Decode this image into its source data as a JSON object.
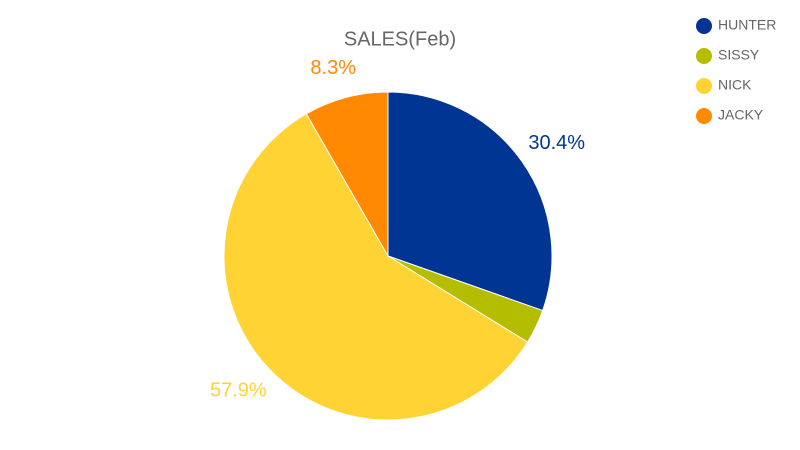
{
  "chart_data": {
    "type": "pie",
    "title": "SALES(Feb)",
    "categories": [
      "HUNTER",
      "SISSY",
      "NICK",
      "JACKY"
    ],
    "values": [
      30.4,
      3.4,
      57.9,
      8.3
    ],
    "value_labels": [
      "30.4%",
      null,
      "57.9%",
      "8.3%"
    ],
    "colors": [
      "#003594",
      "#b5bd00",
      "#ffd334",
      "#ff8900"
    ],
    "legend": "top-right"
  }
}
